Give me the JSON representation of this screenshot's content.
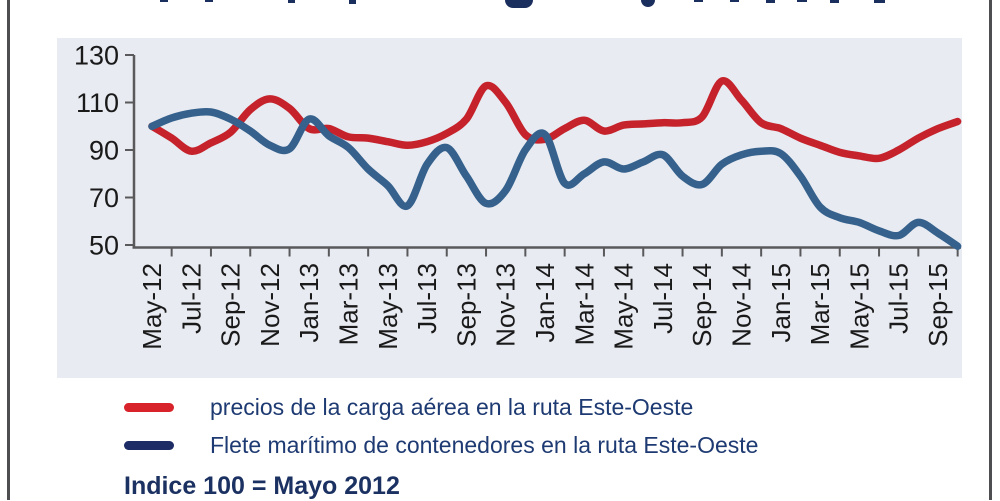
{
  "frame": {
    "border_color": "#4e4e50"
  },
  "chart_data": {
    "type": "line",
    "title": "",
    "x_frequency": "monthly",
    "x_tick_labels": [
      "May-12",
      "Jul-12",
      "Sep-12",
      "Nov-12",
      "Jan-13",
      "Mar-13",
      "May-13",
      "Jul-13",
      "Sep-13",
      "Nov-13",
      "Jan-14",
      "Mar-14",
      "May-14",
      "Jul-14",
      "Sep-14",
      "Nov-14",
      "Jan-15",
      "Mar-15",
      "May-15",
      "Jul-15",
      "Sep-15"
    ],
    "ylim": [
      50,
      130
    ],
    "yticks": [
      130,
      110,
      90,
      70,
      50
    ],
    "grid": false,
    "plot_bg": "#e8ebf2",
    "axis_color": "#59595b",
    "legend_position": "bottom-left",
    "series": [
      {
        "name": "precios de la carga aérea en la ruta Este-Oeste",
        "color": "#c5222b",
        "values": [
          100,
          95,
          89.5,
          93,
          97.5,
          107,
          111.5,
          107.5,
          99,
          99,
          95.5,
          95,
          93.5,
          92,
          93.5,
          97,
          103,
          117,
          110,
          96.5,
          94.5,
          99,
          102.5,
          98,
          100.5,
          101,
          101.5,
          101.5,
          104,
          119,
          111,
          101.5,
          99,
          95,
          92,
          89,
          87.5,
          86.5,
          90,
          95,
          99,
          102
        ]
      },
      {
        "name": "Flete marítimo de contenedores en la ruta Este-Oeste",
        "color": "#35618c",
        "values": [
          100,
          103.5,
          105.5,
          106,
          103,
          98,
          92,
          90.5,
          103,
          96,
          91,
          82,
          75,
          66.5,
          84,
          91,
          79,
          67.5,
          73,
          90,
          96.5,
          76,
          80,
          85,
          82,
          85,
          88,
          79,
          75.5,
          84,
          88,
          89.5,
          88.5,
          79,
          66,
          61.5,
          59.5,
          56,
          54,
          59.5,
          55,
          49.5
        ]
      }
    ],
    "note": "Indice 100 = Mayo 2012"
  },
  "legend": {
    "items": [
      {
        "label": "precios de la carga aérea en la ruta Este-Oeste",
        "swatch_color": "#d8232a"
      },
      {
        "label": "Flete marítimo de contenedores en la ruta Este-Oeste",
        "swatch_color": "#1e2c66"
      }
    ]
  },
  "footnote": {
    "text": "Indice 100 = Mayo 2012"
  }
}
